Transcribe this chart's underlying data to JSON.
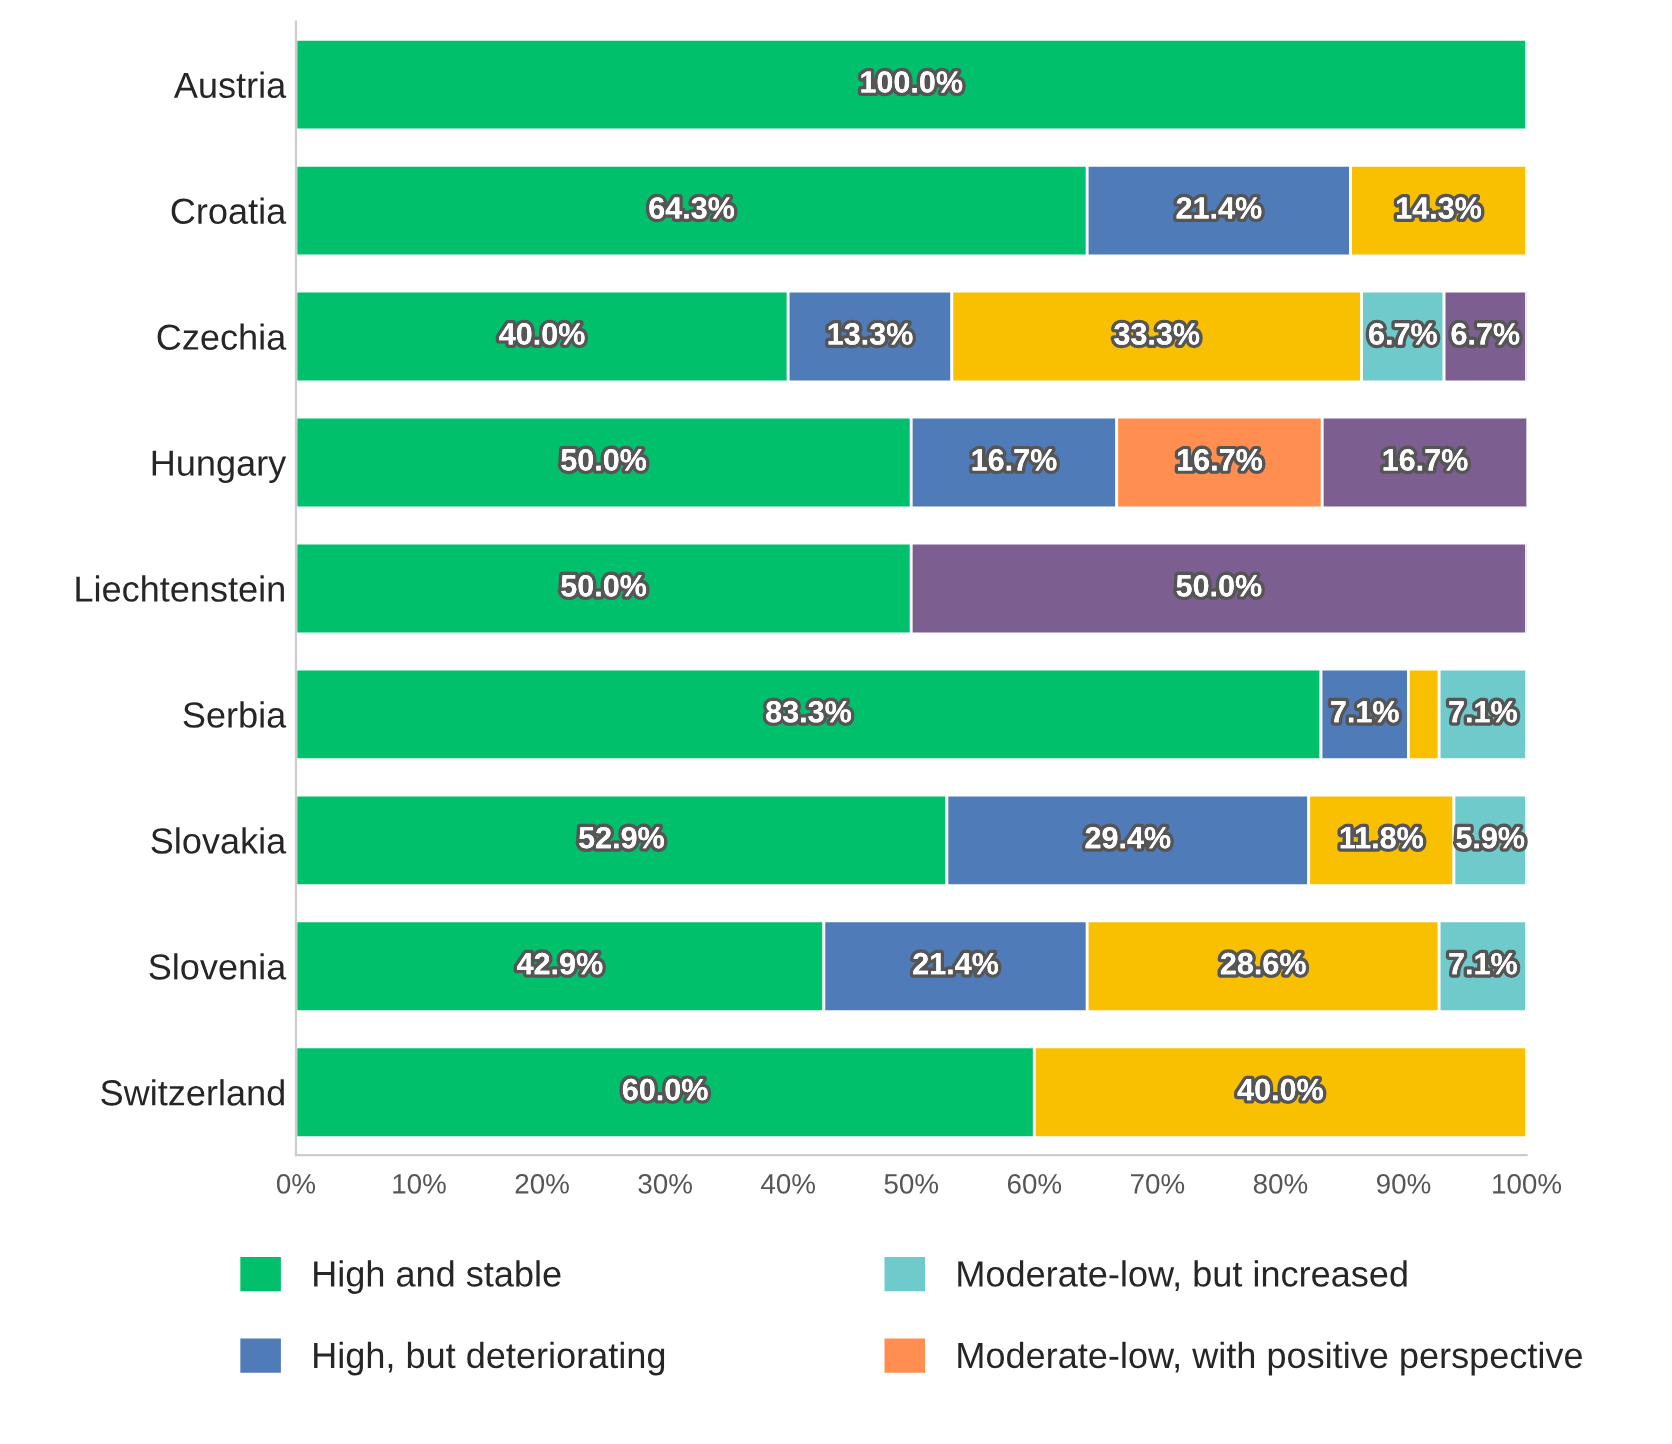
{
  "chart_data": {
    "type": "bar",
    "orientation": "horizontal",
    "stacked": true,
    "categories": [
      "Austria",
      "Croatia",
      "Czechia",
      "Hungary",
      "Liechtenstein",
      "Serbia",
      "Slovakia",
      "Slovenia",
      "Switzerland"
    ],
    "series": [
      {
        "name": "High and stable",
        "color": "#00c06b",
        "values": [
          100.0,
          64.3,
          40.0,
          50.0,
          50.0,
          83.3,
          52.9,
          42.9,
          60.0
        ],
        "value_labels": [
          "100.0%",
          "64.3%",
          "40.0%",
          "50.0%",
          "50.0%",
          "83.3%",
          "52.9%",
          "42.9%",
          "60.0%"
        ]
      },
      {
        "name": "High, but deteriorating",
        "color": "#4f7bb8",
        "values": [
          null,
          21.4,
          13.3,
          16.7,
          null,
          7.1,
          29.4,
          21.4,
          null
        ],
        "value_labels": [
          null,
          "21.4%",
          "13.3%",
          "16.7%",
          null,
          "7.1%",
          "29.4%",
          "21.4%",
          null
        ]
      },
      {
        "color": "#f8c000",
        "values": [
          null,
          14.3,
          33.3,
          null,
          null,
          2.5,
          11.8,
          28.6,
          40.0
        ],
        "value_labels": [
          null,
          "14.3%",
          "33.3%",
          null,
          null,
          null,
          "11.8%",
          "28.6%",
          "40.0%"
        ]
      },
      {
        "name": "Moderate-low, but increased",
        "color": "#6fcbcb",
        "values": [
          null,
          null,
          6.7,
          null,
          null,
          7.1,
          5.9,
          7.1,
          null
        ],
        "value_labels": [
          null,
          null,
          "6.7%",
          null,
          null,
          "7.1%",
          "5.9%",
          "7.1%",
          null
        ]
      },
      {
        "name": "Moderate-low, with positive perspective",
        "color": "#ff8e50",
        "values": [
          null,
          null,
          null,
          16.7,
          null,
          null,
          null,
          null,
          null
        ],
        "value_labels": [
          null,
          null,
          null,
          "16.7%",
          null,
          null,
          null,
          null,
          null
        ]
      },
      {
        "color": "#7d5e91",
        "values": [
          null,
          null,
          6.7,
          16.7,
          50.0,
          null,
          null,
          null,
          null
        ],
        "value_labels": [
          null,
          null,
          "6.7%",
          "16.7%",
          "50.0%",
          null,
          null,
          null,
          null
        ]
      }
    ],
    "xlim": [
      0,
      100
    ],
    "xticks": [
      {
        "value": 0,
        "label": "0%"
      },
      {
        "value": 10,
        "label": "10%"
      },
      {
        "value": 20,
        "label": "20%"
      },
      {
        "value": 30,
        "label": "30%"
      },
      {
        "value": 40,
        "label": "40%"
      },
      {
        "value": 50,
        "label": "50%"
      },
      {
        "value": 60,
        "label": "60%"
      },
      {
        "value": 70,
        "label": "70%"
      },
      {
        "value": 80,
        "label": "80%"
      },
      {
        "value": 90,
        "label": "90%"
      },
      {
        "value": 100,
        "label": "100%"
      }
    ],
    "legend": "bottom",
    "grid": false
  }
}
